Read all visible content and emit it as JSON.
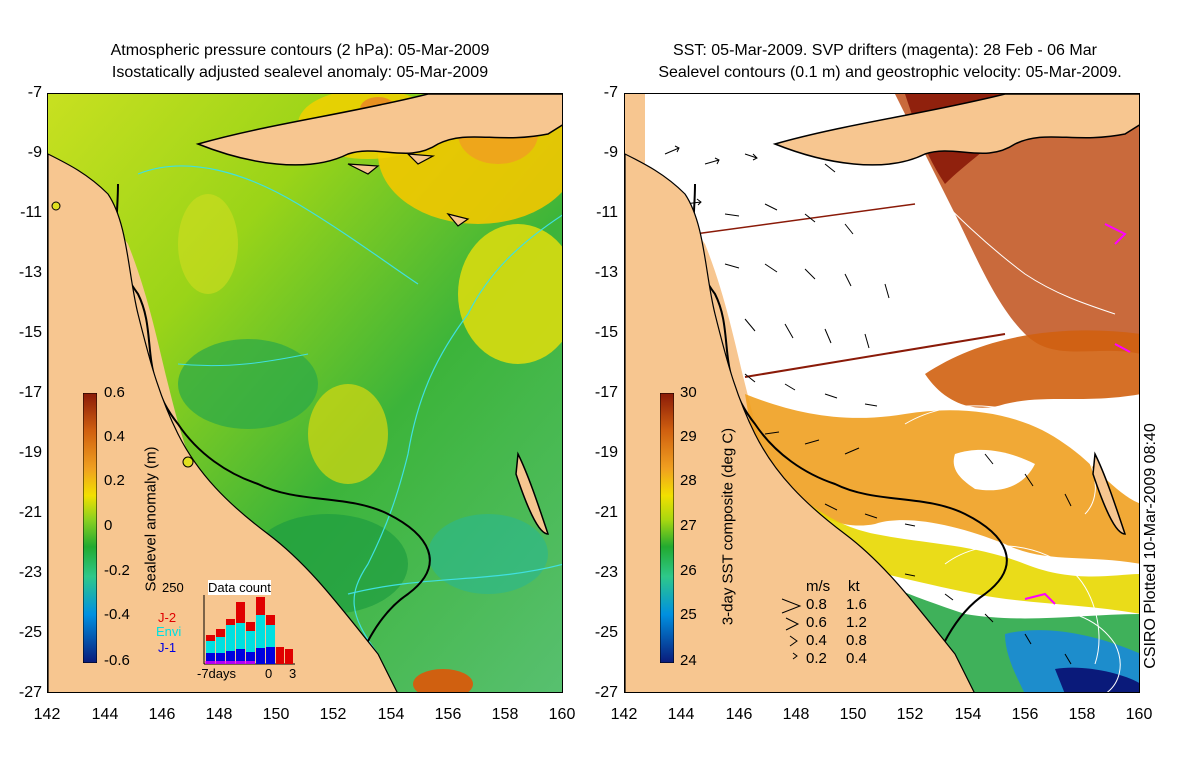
{
  "left": {
    "title_line1": "Atmospheric pressure contours (2 hPa): 05-Mar-2009",
    "title_line2": "Isostatically adjusted sealevel anomaly: 05-Mar-2009",
    "colorbar_label": "Sealevel anomaly (m)",
    "colorbar_ticks": [
      "0.6",
      "0.4",
      "0.2",
      "0",
      "-0.2",
      "-0.4",
      "-0.6"
    ],
    "histogram": {
      "title": "Data count",
      "ymax_label": "250",
      "series": [
        "J-2",
        "Envi",
        "J-1"
      ],
      "x_labels": [
        "-7days",
        "0",
        "3"
      ],
      "colors": {
        "J-2": "#e00000",
        "Envi": "#00e0e0",
        "J-1": "#0000e0"
      }
    }
  },
  "right": {
    "title_line1": "SST: 05-Mar-2009. SVP drifters (magenta): 28 Feb - 06 Mar",
    "title_line2": "Sealevel contours (0.1 m) and geostrophic velocity: 05-Mar-2009.",
    "colorbar_label": "3-day SST composite (deg C)",
    "colorbar_ticks": [
      "30",
      "29",
      "28",
      "27",
      "26",
      "25",
      "24"
    ],
    "velocity_legend": {
      "headers": [
        "m/s",
        "kt"
      ],
      "rows": [
        [
          "0.8",
          "1.6"
        ],
        [
          "0.6",
          "1.2"
        ],
        [
          "0.4",
          "0.8"
        ],
        [
          "0.2",
          "0.4"
        ]
      ]
    }
  },
  "axes": {
    "y_ticks": [
      "-7",
      "-9",
      "-11",
      "-13",
      "-15",
      "-17",
      "-19",
      "-21",
      "-23",
      "-25",
      "-27"
    ],
    "x_ticks": [
      "142",
      "144",
      "146",
      "148",
      "150",
      "152",
      "154",
      "156",
      "158",
      "160"
    ]
  },
  "credit": "CSIRO Plotted 10-Mar-2009 08:40",
  "colors": {
    "land": "#f7c690",
    "sla_ramp": [
      "#0a1a7a",
      "#0090e0",
      "#2ec88a",
      "#22aa30",
      "#8ad020",
      "#f2e000",
      "#f0a020",
      "#d06010",
      "#8a1a08"
    ],
    "sst_ramp": [
      "#0a1a7a",
      "#0090e0",
      "#2ec88a",
      "#22aa30",
      "#a8d810",
      "#f2e000",
      "#f0a020",
      "#d06010",
      "#8a1a08"
    ]
  }
}
